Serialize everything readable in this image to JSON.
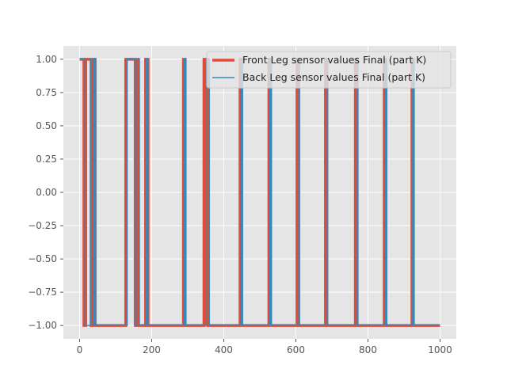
{
  "chart_data": {
    "type": "line",
    "xlim": [
      -45,
      1045
    ],
    "ylim": [
      -1.1,
      1.1
    ],
    "x_ticks": [
      0,
      200,
      400,
      600,
      800,
      1000
    ],
    "x_tick_labels": [
      "0",
      "200",
      "400",
      "600",
      "800",
      "1000"
    ],
    "y_ticks": [
      1.0,
      0.75,
      0.5,
      0.25,
      0.0,
      -0.25,
      -0.5,
      -0.75,
      -1.0
    ],
    "y_tick_labels": [
      "1.00",
      "0.75",
      "0.50",
      "0.25",
      "0.00",
      "−0.25",
      "−0.50",
      "−0.75",
      "−1.00"
    ],
    "grid": true,
    "legend_position": "upper-right",
    "series": [
      {
        "name": "Front Leg sensor values Final (part K)",
        "color": "#E24A33",
        "transitions": [
          0,
          1,
          12,
          -1,
          17,
          1,
          32,
          -1,
          35,
          1,
          43,
          -1,
          128,
          1,
          155,
          -1,
          158,
          1,
          163,
          -1,
          183,
          1,
          190,
          -1,
          288,
          1,
          293,
          -1,
          345,
          1,
          355,
          -1,
          445,
          1,
          450,
          -1,
          525,
          1,
          530,
          -1,
          603,
          1,
          608,
          -1,
          682,
          1,
          686,
          -1,
          765,
          1,
          770,
          -1,
          845,
          1,
          850,
          -1,
          922,
          1,
          926,
          -1,
          1000
        ]
      },
      {
        "name": "Back Leg sensor values Final (part K)",
        "color": "#348ABD",
        "transitions": [
          0,
          1,
          15,
          -1,
          30,
          1,
          38,
          -1,
          40,
          1,
          45,
          -1,
          132,
          1,
          152,
          -1,
          160,
          1,
          166,
          -1,
          185,
          1,
          188,
          -1,
          290,
          1,
          295,
          -1,
          350,
          1,
          360,
          -1,
          448,
          1,
          452,
          -1,
          528,
          1,
          532,
          -1,
          605,
          1,
          610,
          -1,
          684,
          1,
          688,
          -1,
          768,
          1,
          772,
          -1,
          848,
          1,
          852,
          -1,
          924,
          1,
          928,
          -1,
          1000
        ]
      }
    ]
  }
}
